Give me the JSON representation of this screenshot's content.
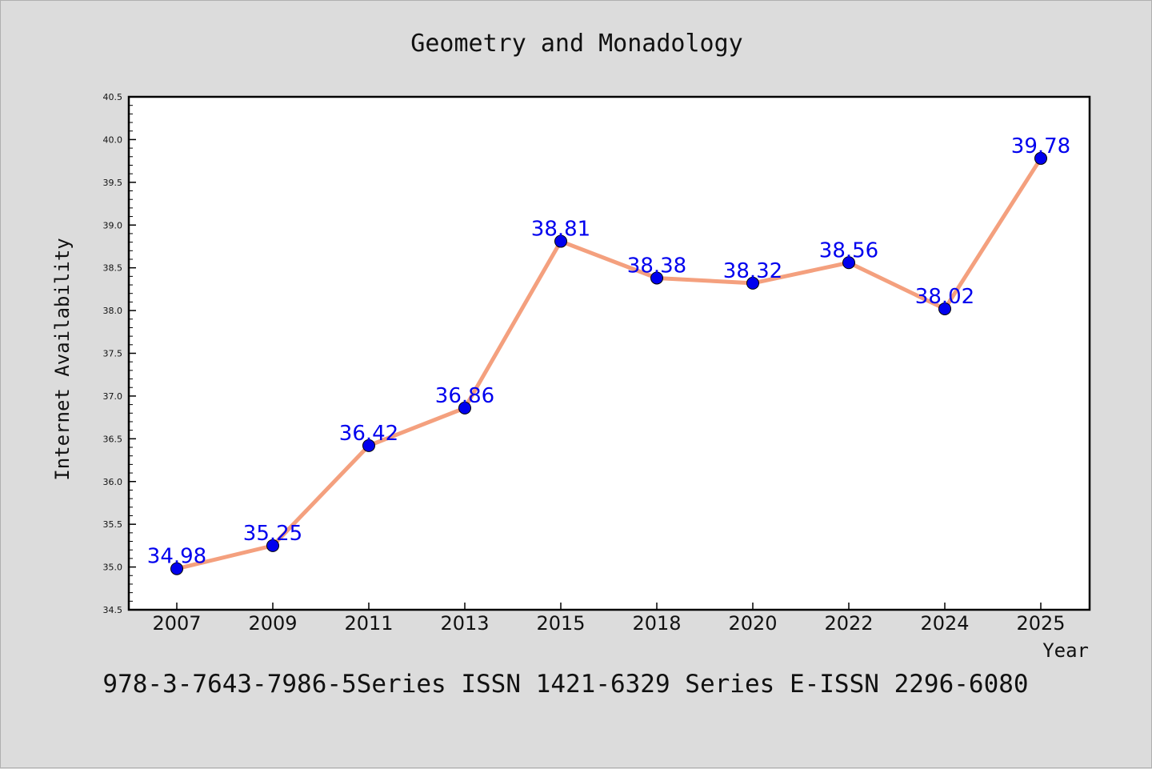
{
  "footer_text": "978-3-7643-7986-5Series ISSN 1421-6329 Series E-ISSN 2296-6080",
  "colors": {
    "background": "#dcdcdc",
    "plot_background": "#ffffff",
    "line": "#f4a07e",
    "marker": "#0000ee",
    "data_label": "#0000ee"
  },
  "chart_data": {
    "type": "line",
    "title": "Geometry and Monadology",
    "xlabel": "Year",
    "ylabel": "Internet Availability",
    "categories": [
      "2007",
      "2009",
      "2011",
      "2013",
      "2015",
      "2018",
      "2020",
      "2022",
      "2024",
      "2025"
    ],
    "series": [
      {
        "values": [
          34.98,
          35.25,
          36.42,
          36.86,
          38.81,
          38.38,
          38.32,
          38.56,
          38.02,
          39.78
        ]
      }
    ],
    "data_labels": [
      "34.98",
      "35.25",
      "36.42",
      "36.86",
      "38.81",
      "38.38",
      "38.32",
      "38.56",
      "38.02",
      "39.78"
    ],
    "ylim": [
      34.5,
      40.5
    ],
    "yticks": [
      "34.5",
      "35.0",
      "35.5",
      "36.0",
      "36.5",
      "37.0",
      "37.5",
      "38.0",
      "38.5",
      "39.0",
      "39.5",
      "40.0",
      "40.5"
    ],
    "grid": false,
    "legend": "none"
  }
}
